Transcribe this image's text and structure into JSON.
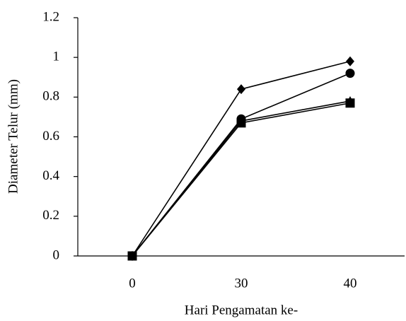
{
  "chart_data": {
    "type": "line",
    "x_label": "Hari Pengamatan ke-",
    "y_label": "Diameter Telur (mm)",
    "categories": [
      "0",
      "30",
      "40"
    ],
    "series": [
      {
        "color": "#000000",
        "marker": "diamond",
        "values": [
          0,
          0.84,
          0.98
        ]
      },
      {
        "color": "#000000",
        "marker": "circle",
        "values": [
          0,
          0.69,
          0.92
        ]
      },
      {
        "color": "#000000",
        "marker": "triangle",
        "values": [
          0,
          0.68,
          0.78
        ]
      },
      {
        "color": "#000000",
        "marker": "square",
        "values": [
          0,
          0.67,
          0.77
        ]
      }
    ],
    "ylim": [
      0,
      1.2
    ],
    "yticks": [
      0,
      0.2,
      0.4,
      0.6,
      0.8,
      1,
      1.2
    ],
    "grid": false
  }
}
